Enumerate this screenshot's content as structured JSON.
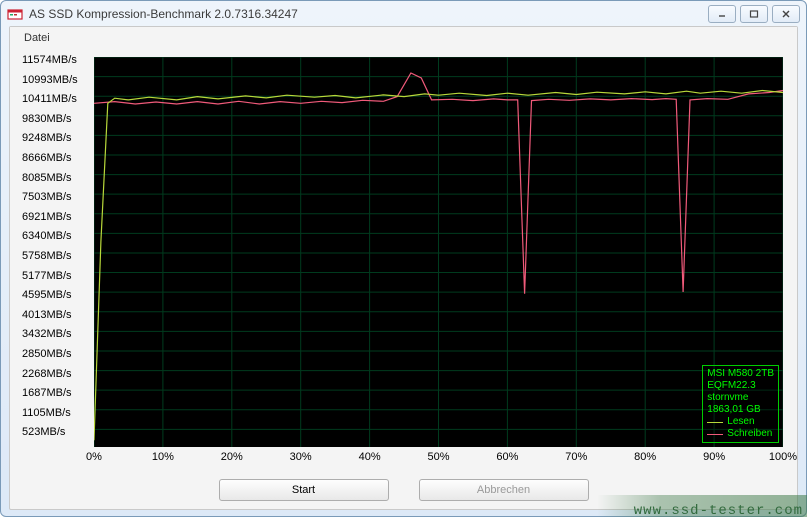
{
  "window": {
    "title": "AS SSD Kompression-Benchmark 2.0.7316.34247"
  },
  "menu": {
    "file": "Datei"
  },
  "chart": {
    "type": "line",
    "background_color": "#000000",
    "grid_color": "#003b1e",
    "axis_color": "#ffffff",
    "y_unit": "MB/s",
    "ytick_values": [
      523,
      1105,
      1687,
      2268,
      2850,
      3432,
      4013,
      4595,
      5177,
      5758,
      6340,
      6921,
      7503,
      8085,
      8666,
      9248,
      9830,
      10411,
      10993,
      11574
    ],
    "ylim": [
      0,
      11574
    ],
    "xtick_percent": [
      0,
      10,
      20,
      30,
      40,
      50,
      60,
      70,
      80,
      90,
      100
    ],
    "xlim": [
      0,
      100
    ],
    "label_fontsize": 11,
    "series": {
      "read": {
        "label": "Lesen",
        "color": "#b8d83a",
        "width": 1.2,
        "points": [
          [
            0,
            200
          ],
          [
            1,
            6100
          ],
          [
            2,
            10200
          ],
          [
            3,
            10350
          ],
          [
            5,
            10300
          ],
          [
            8,
            10380
          ],
          [
            12,
            10300
          ],
          [
            15,
            10400
          ],
          [
            18,
            10330
          ],
          [
            22,
            10420
          ],
          [
            25,
            10360
          ],
          [
            28,
            10440
          ],
          [
            32,
            10380
          ],
          [
            35,
            10430
          ],
          [
            38,
            10360
          ],
          [
            42,
            10450
          ],
          [
            45,
            10400
          ],
          [
            48,
            10480
          ],
          [
            50,
            10440
          ],
          [
            53,
            10500
          ],
          [
            57,
            10430
          ],
          [
            60,
            10500
          ],
          [
            63,
            10440
          ],
          [
            67,
            10520
          ],
          [
            70,
            10460
          ],
          [
            73,
            10530
          ],
          [
            77,
            10480
          ],
          [
            80,
            10540
          ],
          [
            83,
            10480
          ],
          [
            86,
            10560
          ],
          [
            88,
            10500
          ],
          [
            91,
            10560
          ],
          [
            94,
            10500
          ],
          [
            97,
            10580
          ],
          [
            100,
            10520
          ]
        ]
      },
      "write": {
        "label": "Schreiben",
        "color": "#f05a7a",
        "width": 1.2,
        "points": [
          [
            0,
            10200
          ],
          [
            3,
            10250
          ],
          [
            6,
            10180
          ],
          [
            9,
            10240
          ],
          [
            12,
            10180
          ],
          [
            15,
            10250
          ],
          [
            18,
            10180
          ],
          [
            21,
            10260
          ],
          [
            24,
            10180
          ],
          [
            27,
            10250
          ],
          [
            30,
            10200
          ],
          [
            33,
            10260
          ],
          [
            36,
            10220
          ],
          [
            39,
            10290
          ],
          [
            42,
            10260
          ],
          [
            44,
            10400
          ],
          [
            46,
            11100
          ],
          [
            47.5,
            10950
          ],
          [
            49,
            10300
          ],
          [
            52,
            10320
          ],
          [
            55,
            10280
          ],
          [
            58,
            10330
          ],
          [
            60,
            10300
          ],
          [
            61.5,
            10300
          ],
          [
            62.5,
            4550
          ],
          [
            63.5,
            10280
          ],
          [
            66,
            10320
          ],
          [
            69,
            10290
          ],
          [
            72,
            10330
          ],
          [
            75,
            10300
          ],
          [
            78,
            10340
          ],
          [
            81,
            10310
          ],
          [
            83,
            10340
          ],
          [
            84.5,
            10320
          ],
          [
            85.5,
            4600
          ],
          [
            86.5,
            10300
          ],
          [
            89,
            10340
          ],
          [
            92,
            10320
          ],
          [
            95,
            10480
          ],
          [
            98,
            10520
          ],
          [
            100,
            10580
          ]
        ]
      }
    }
  },
  "legend": {
    "lines": [
      "MSI M580 2TB",
      "EQFM22.3",
      "stornvme",
      "1863,01 GB"
    ],
    "border_color": "#00cc00",
    "text_color": "#00ff00"
  },
  "buttons": {
    "start": "Start",
    "cancel": "Abbrechen"
  },
  "watermark": "www.ssd-tester.com"
}
